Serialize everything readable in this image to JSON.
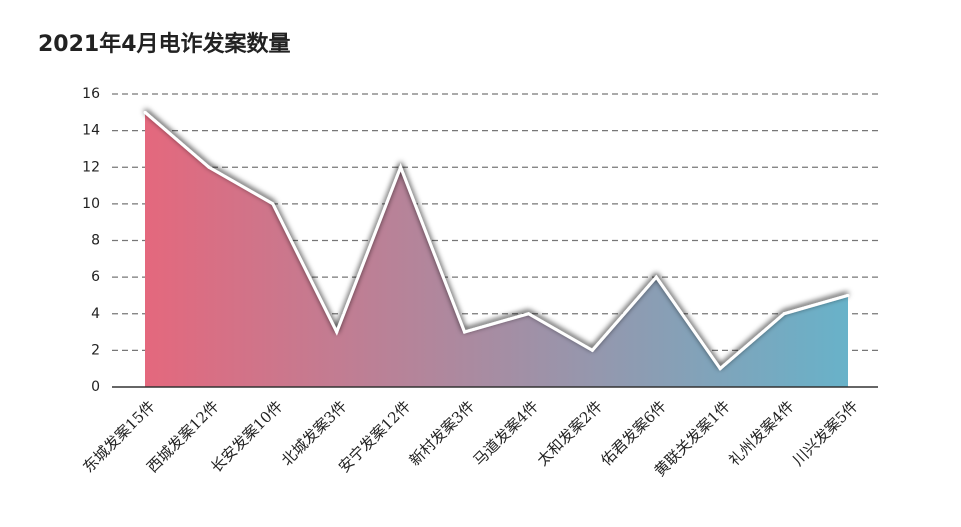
{
  "chart_data": {
    "type": "area",
    "title": "2021年4月电诈发案数量",
    "categories": [
      "东城发案15件",
      "西城发案12件",
      "长安发案10件",
      "北城发案3件",
      "安宁发案12件",
      "新村发案3件",
      "马道发案4件",
      "太和发案2件",
      "佑君发案6件",
      "黄联关发案1件",
      "礼州发案4件",
      "川兴发案5件"
    ],
    "values": [
      15,
      12,
      10,
      3,
      12,
      3,
      4,
      2,
      6,
      1,
      4,
      5
    ],
    "colors": [
      "#e4687d",
      "#68b2c9"
    ],
    "ylim": [
      0,
      16
    ],
    "yticks": [
      0,
      2,
      4,
      6,
      8,
      10,
      12,
      14,
      16
    ],
    "grid": true
  }
}
